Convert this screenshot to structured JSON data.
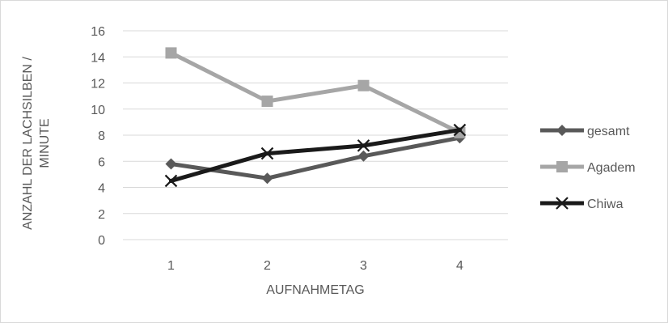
{
  "chart_data": {
    "type": "line",
    "title": "",
    "xlabel": "AUFNAHMETAG",
    "ylabel": [
      "ANZAHL DER LACHSILBEN /",
      "MINUTE"
    ],
    "categories": [
      "1",
      "2",
      "3",
      "4"
    ],
    "ylim": [
      0,
      16
    ],
    "yticks": [
      0,
      2,
      4,
      6,
      8,
      10,
      12,
      14,
      16
    ],
    "grid": true,
    "legend_position": "right",
    "series": [
      {
        "name": "gesamt",
        "values": [
          5.8,
          4.7,
          6.4,
          7.8
        ],
        "color": "#595959",
        "marker": "diamond"
      },
      {
        "name": "Agadem",
        "values": [
          14.3,
          10.6,
          11.8,
          8.2
        ],
        "color": "#a6a6a6",
        "marker": "square"
      },
      {
        "name": "Chiwa",
        "values": [
          4.5,
          6.6,
          7.2,
          8.4
        ],
        "color": "#1a1a1a",
        "marker": "x"
      }
    ]
  }
}
